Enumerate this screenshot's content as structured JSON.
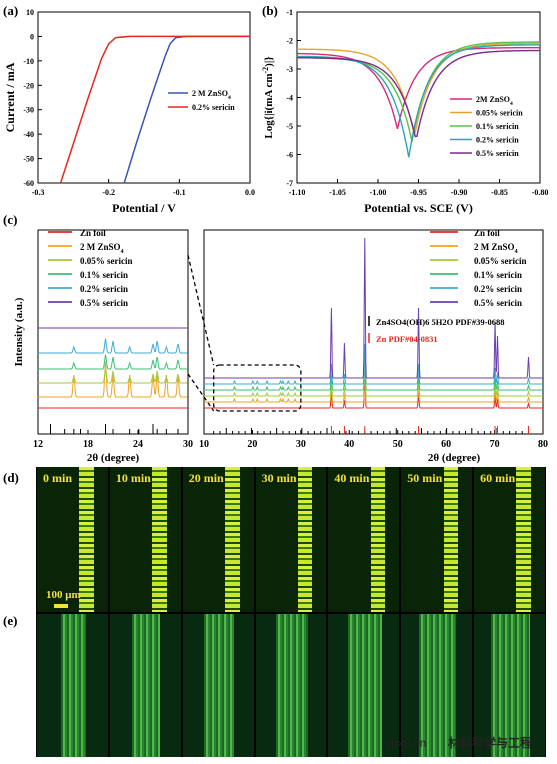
{
  "panels": {
    "a": "(a)",
    "b": "(b)",
    "c": "(c)",
    "d": "(d)",
    "e": "(e)"
  },
  "chart_data": [
    {
      "type": "line",
      "panel": "(a)",
      "xlabel": "Potential / V",
      "ylabel": "Current / mA",
      "xlim": [
        -0.3,
        0.0
      ],
      "ylim": [
        -60,
        10
      ],
      "xticks": [
        "-0.3",
        "-0.2",
        "-0.1",
        "0.0"
      ],
      "yticks": [
        "10",
        "0",
        "-10",
        "-20",
        "-30",
        "-40",
        "-50",
        "-60"
      ],
      "legend": "center-right",
      "series": [
        {
          "name": "2 M ZnSO4",
          "color": "#3a55b4",
          "x": [
            -0.178,
            -0.16,
            -0.14,
            -0.12,
            -0.113,
            -0.105,
            -0.09,
            -0.05,
            0.0
          ],
          "y": [
            -60,
            -43,
            -25,
            -8,
            -3,
            -0.5,
            0,
            0,
            0
          ]
        },
        {
          "name": "0.2% sericin",
          "color": "#e8271f",
          "x": [
            -0.268,
            -0.25,
            -0.23,
            -0.21,
            -0.2,
            -0.19,
            -0.17,
            -0.12,
            0.0
          ],
          "y": [
            -60,
            -44,
            -26,
            -9,
            -3,
            -0.5,
            0,
            0,
            0
          ]
        }
      ]
    },
    {
      "type": "line",
      "panel": "(b)",
      "xlabel": "Potential vs. SCE (V)",
      "ylabel": "Log{|i(mA cm",
      "ylabel_sup": "-2",
      "ylabel_tail": ")|}",
      "xlim": [
        -1.1,
        -0.8
      ],
      "ylim": [
        -7,
        -1
      ],
      "xticks": [
        "-1.10",
        "-1.05",
        "-1.00",
        "-0.95",
        "-0.90",
        "-0.85",
        "-0.80"
      ],
      "yticks": [
        "-1",
        "-2",
        "-3",
        "-4",
        "-5",
        "-6",
        "-7"
      ],
      "legend": "right",
      "series": [
        {
          "name": "2M ZnSO4",
          "color": "#d6297d",
          "ecorr": -0.976,
          "min": -5.1,
          "left": -2.45,
          "right": -2.25
        },
        {
          "name": "0.05% sericin",
          "color": "#e6a52a",
          "ecorr": -0.955,
          "min": -5.35,
          "left": -2.3,
          "right": -2.1
        },
        {
          "name": "0.1% sericin",
          "color": "#5cc04a",
          "ecorr": -0.958,
          "min": -5.55,
          "left": -2.6,
          "right": -2.05
        },
        {
          "name": "0.2% sericin",
          "color": "#2aa6b5",
          "ecorr": -0.962,
          "min": -6.1,
          "left": -2.55,
          "right": -2.15
        },
        {
          "name": "0.5% sericin",
          "color": "#7a2b8e",
          "ecorr": -0.953,
          "min": -5.5,
          "left": -2.6,
          "right": -2.35
        }
      ]
    },
    {
      "type": "line",
      "panel": "(c)",
      "xlabel": "2θ (degree)",
      "ylabel": "Intensity (a.u.)",
      "left_xlim": [
        12,
        30
      ],
      "left_xticks": [
        "12",
        "18",
        "24",
        "30"
      ],
      "right_xlim": [
        10,
        80
      ],
      "right_xticks": [
        "10",
        "20",
        "30",
        "40",
        "50",
        "60",
        "70",
        "80"
      ],
      "series": [
        {
          "name": "Zn foil",
          "color": "#e8271f"
        },
        {
          "name": "2 M ZnSO4",
          "color": "#f0a418"
        },
        {
          "name": "0.05% sericin",
          "color": "#a6c93a"
        },
        {
          "name": "0.1% sericin",
          "color": "#3dbf73"
        },
        {
          "name": "0.2% sericin",
          "color": "#3fa9d6"
        },
        {
          "name": "0.5% sericin",
          "color": "#6c3fb1"
        }
      ],
      "zn_peaks": [
        36.3,
        39.0,
        43.2,
        54.3,
        70.1,
        70.6,
        77.0
      ],
      "zn_peak_heights": [
        0.5,
        0.25,
        1.0,
        0.5,
        0.4,
        0.3,
        0.15
      ],
      "sulfate_peaks": [
        16.3,
        20.1,
        21.0,
        23.0,
        25.8,
        26.3,
        27.4,
        28.8
      ],
      "references": [
        {
          "label": "Zn4SO4(OH)6 5H2O PDF#39-0688",
          "color": "#000000"
        },
        {
          "label": "Zn PDF#04-0831",
          "color": "#e8271f"
        }
      ]
    }
  ],
  "time_labels": [
    "0 min",
    "10 min",
    "20 min",
    "30 min",
    "40 min",
    "50 min",
    "60 min"
  ],
  "scale_bar": "100 μm",
  "watermark": {
    "site": "ybx8.cn",
    "account": "材料科学与工程"
  }
}
